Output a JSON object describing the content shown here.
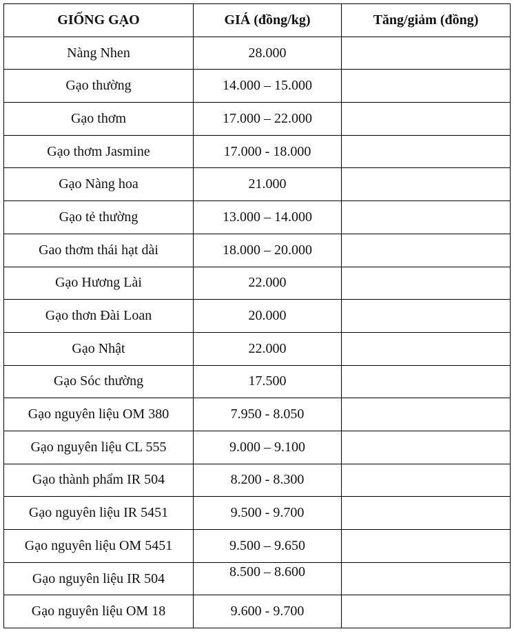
{
  "table": {
    "headers": [
      "GIỐNG GẠO",
      "GIÁ (đồng/kg)",
      "Tăng/giảm (đồng)"
    ],
    "rows": [
      [
        "Nàng Nhen",
        "28.000",
        ""
      ],
      [
        "Gạo thường",
        "14.000 – 15.000",
        ""
      ],
      [
        "Gạo thơm",
        "17.000 – 22.000",
        ""
      ],
      [
        "Gạo thơm Jasmine",
        "17.000 - 18.000",
        ""
      ],
      [
        "Gạo Nàng hoa",
        "21.000",
        ""
      ],
      [
        "Gạo tẻ thường",
        "13.000 – 14.000",
        ""
      ],
      [
        "Gao thơm thái hạt dài",
        "18.000 – 20.000",
        ""
      ],
      [
        "Gạo Hương Lài",
        "22.000",
        ""
      ],
      [
        "Gạo thơn Đài Loan",
        "20.000",
        ""
      ],
      [
        "Gạo Nhật",
        "22.000",
        ""
      ],
      [
        "Gạo Sóc thường",
        "17.500",
        ""
      ],
      [
        "Gạo nguyên liệu OM 380",
        "7.950 - 8.050",
        ""
      ],
      [
        "Gạo nguyên liệu CL 555",
        "9.000 – 9.100",
        ""
      ],
      [
        "Gạo thành phẩm IR 504",
        "8.200 - 8.300",
        ""
      ],
      [
        "Gạo nguyên liệu IR 5451",
        "9.500 - 9.700",
        ""
      ],
      [
        "Gạo nguyên liệu OM 5451",
        "9.500 – 9.650",
        ""
      ],
      [
        "Gạo nguyên liệu IR 504",
        "8.500 – 8.600",
        ""
      ],
      [
        "Gạo nguyên liệu OM 18",
        "9.600 - 9.700",
        ""
      ]
    ]
  }
}
